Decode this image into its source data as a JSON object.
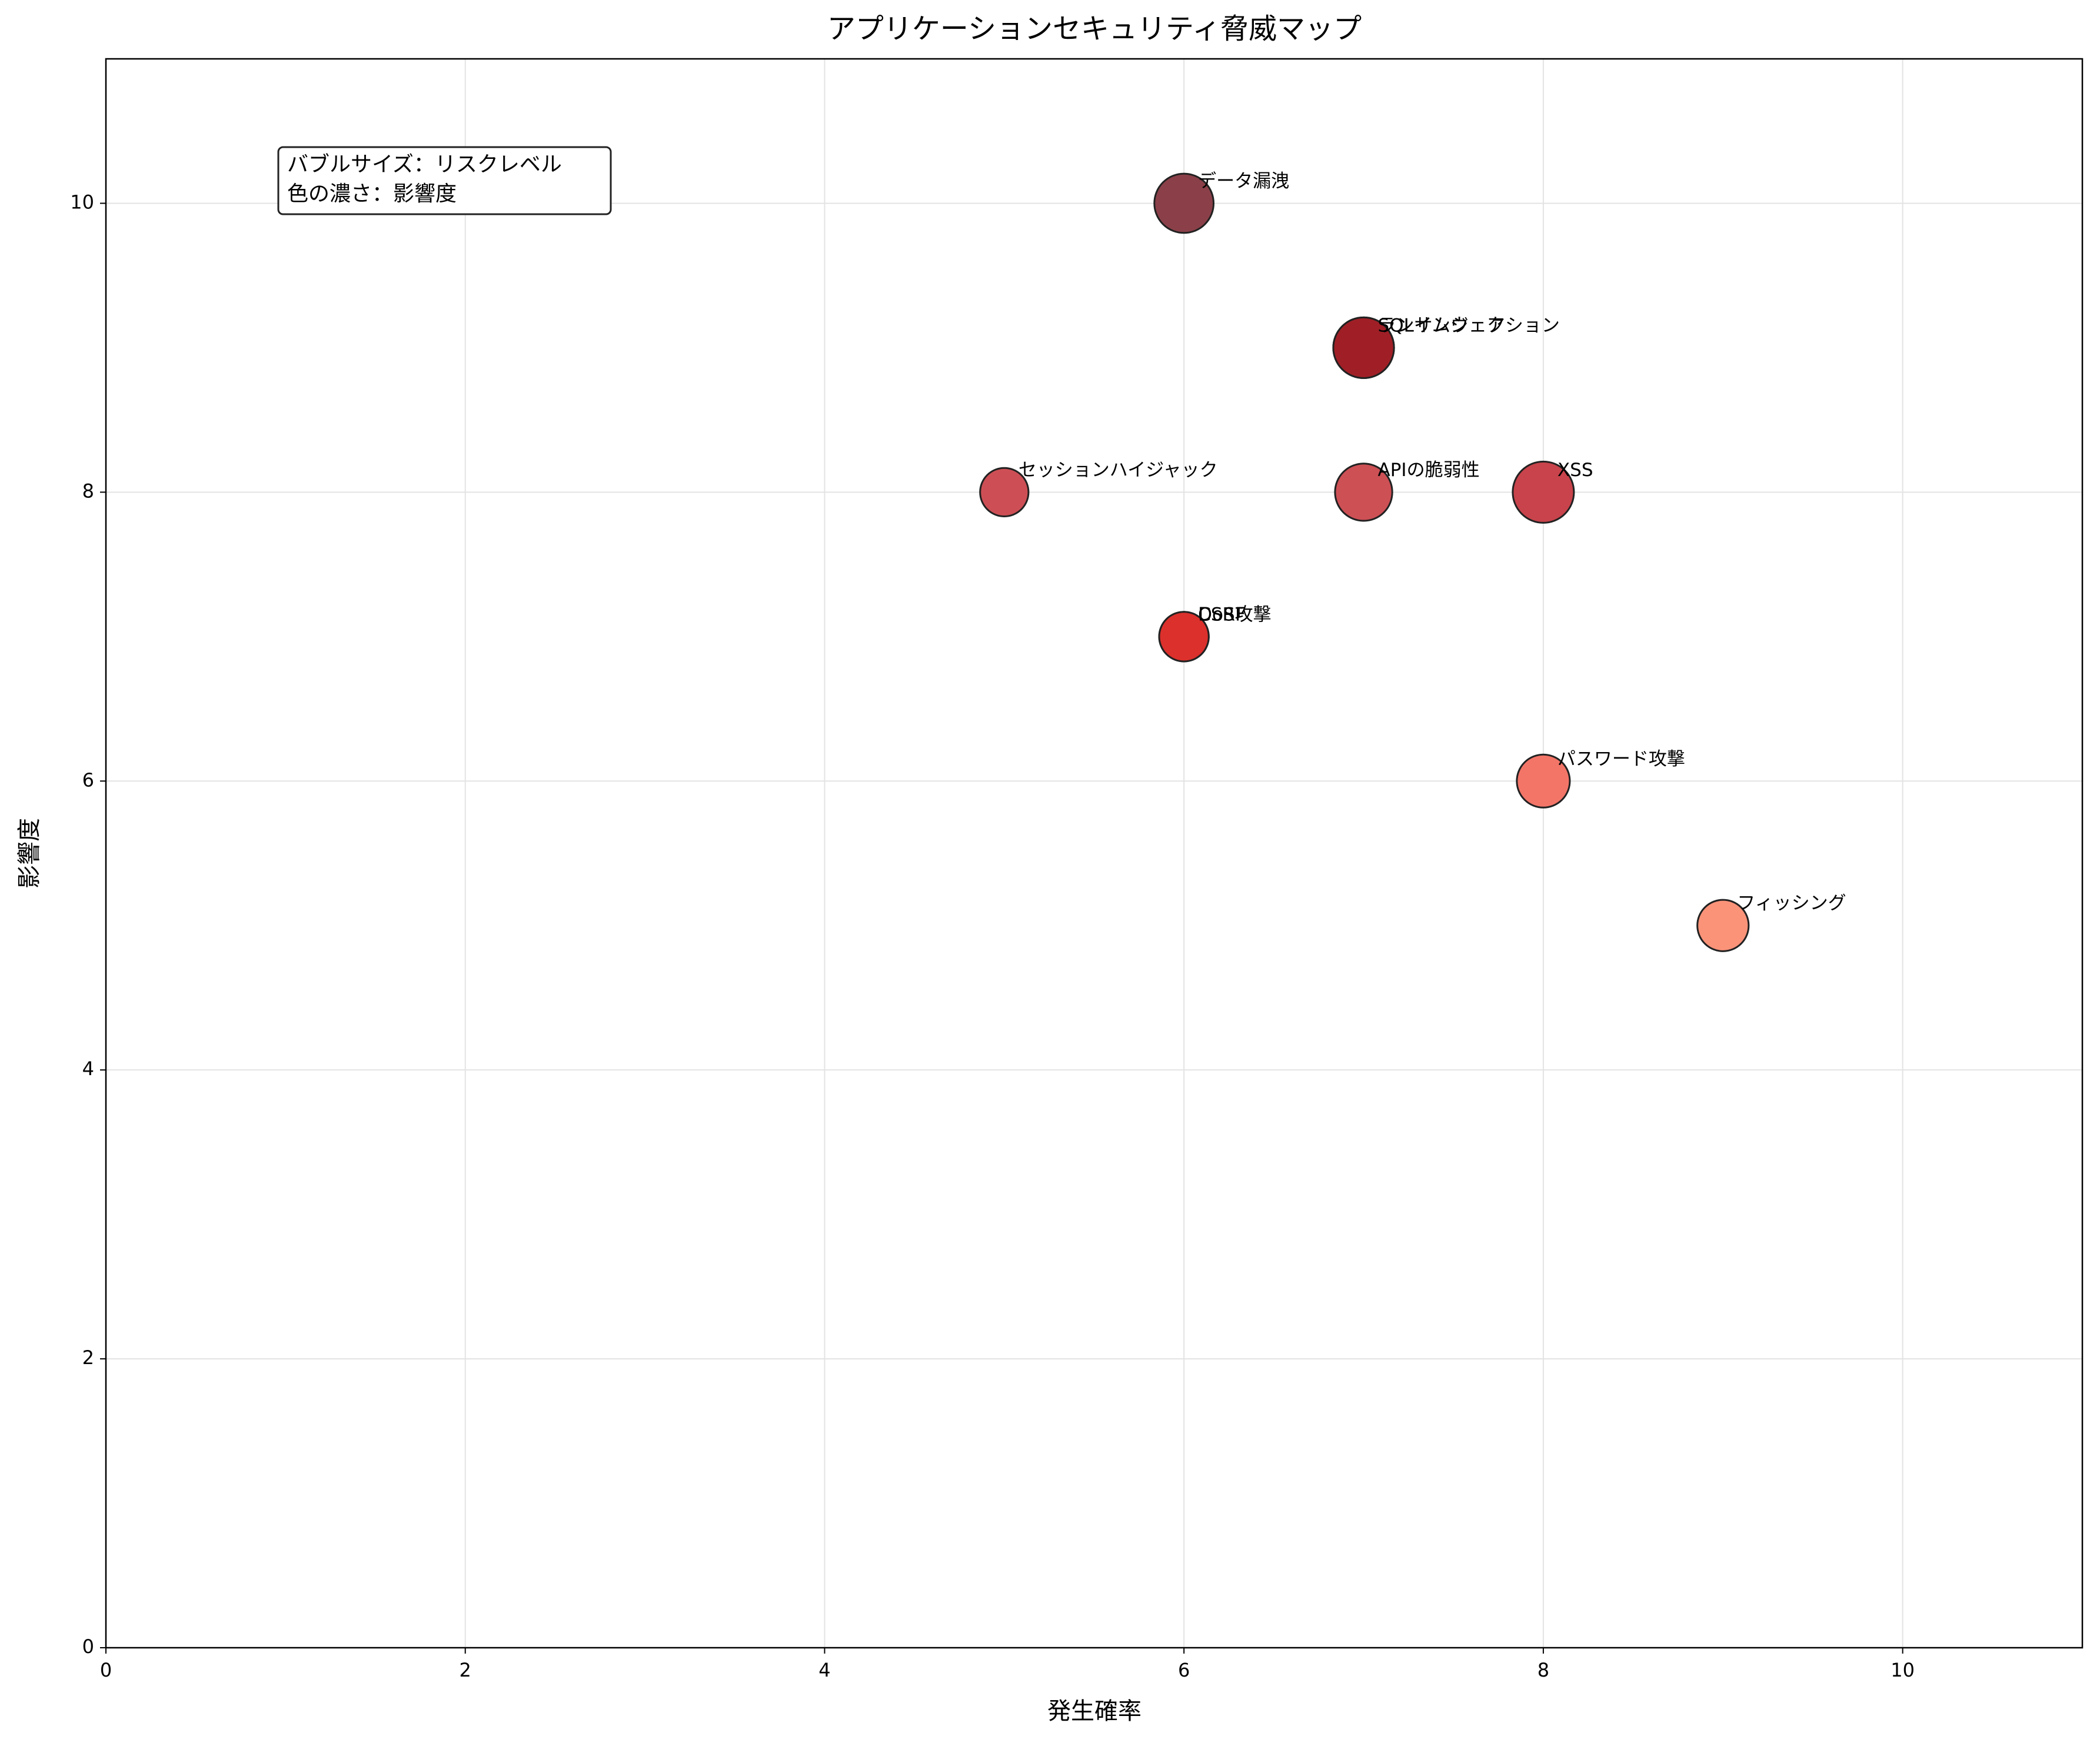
{
  "chart_data": {
    "type": "bubble",
    "title": "アプリケーションセキュリティ脅威マップ",
    "x_label": "発生確率",
    "y_label": "影響度",
    "labels": [
      "データ漏洩",
      "SQLインジェクション",
      "ランサムウェア",
      "セッションハイジャック",
      "APIの脆弱性",
      "XSS",
      "DoS攻撃",
      "CSRF",
      "パスワード攻撃",
      "フィッシング"
    ],
    "x": [
      6,
      7,
      7,
      5,
      7,
      8,
      6,
      6,
      8,
      9
    ],
    "y": [
      10,
      9,
      9,
      8,
      8,
      8,
      7,
      7,
      6,
      5
    ],
    "sizes": [
      60,
      63,
      63,
      40,
      56,
      64,
      42,
      42,
      48,
      45
    ],
    "colors": [
      "#8b4049",
      "#a01f26",
      "#a01f26",
      "#cd4f55",
      "#cd5055",
      "#c8434b",
      "#dc302c",
      "#dc302c",
      "#f37568",
      "#fb9379"
    ],
    "annotation": [
      "バブルサイズ：リスクレベル",
      "色の濃さ：影響度"
    ],
    "xlim": [
      0,
      11
    ],
    "ylim": [
      0,
      11
    ],
    "xticks": [
      0,
      2,
      4,
      6,
      8,
      10
    ],
    "yticks": [
      0,
      2,
      4,
      6,
      8,
      10
    ],
    "grid": true
  }
}
